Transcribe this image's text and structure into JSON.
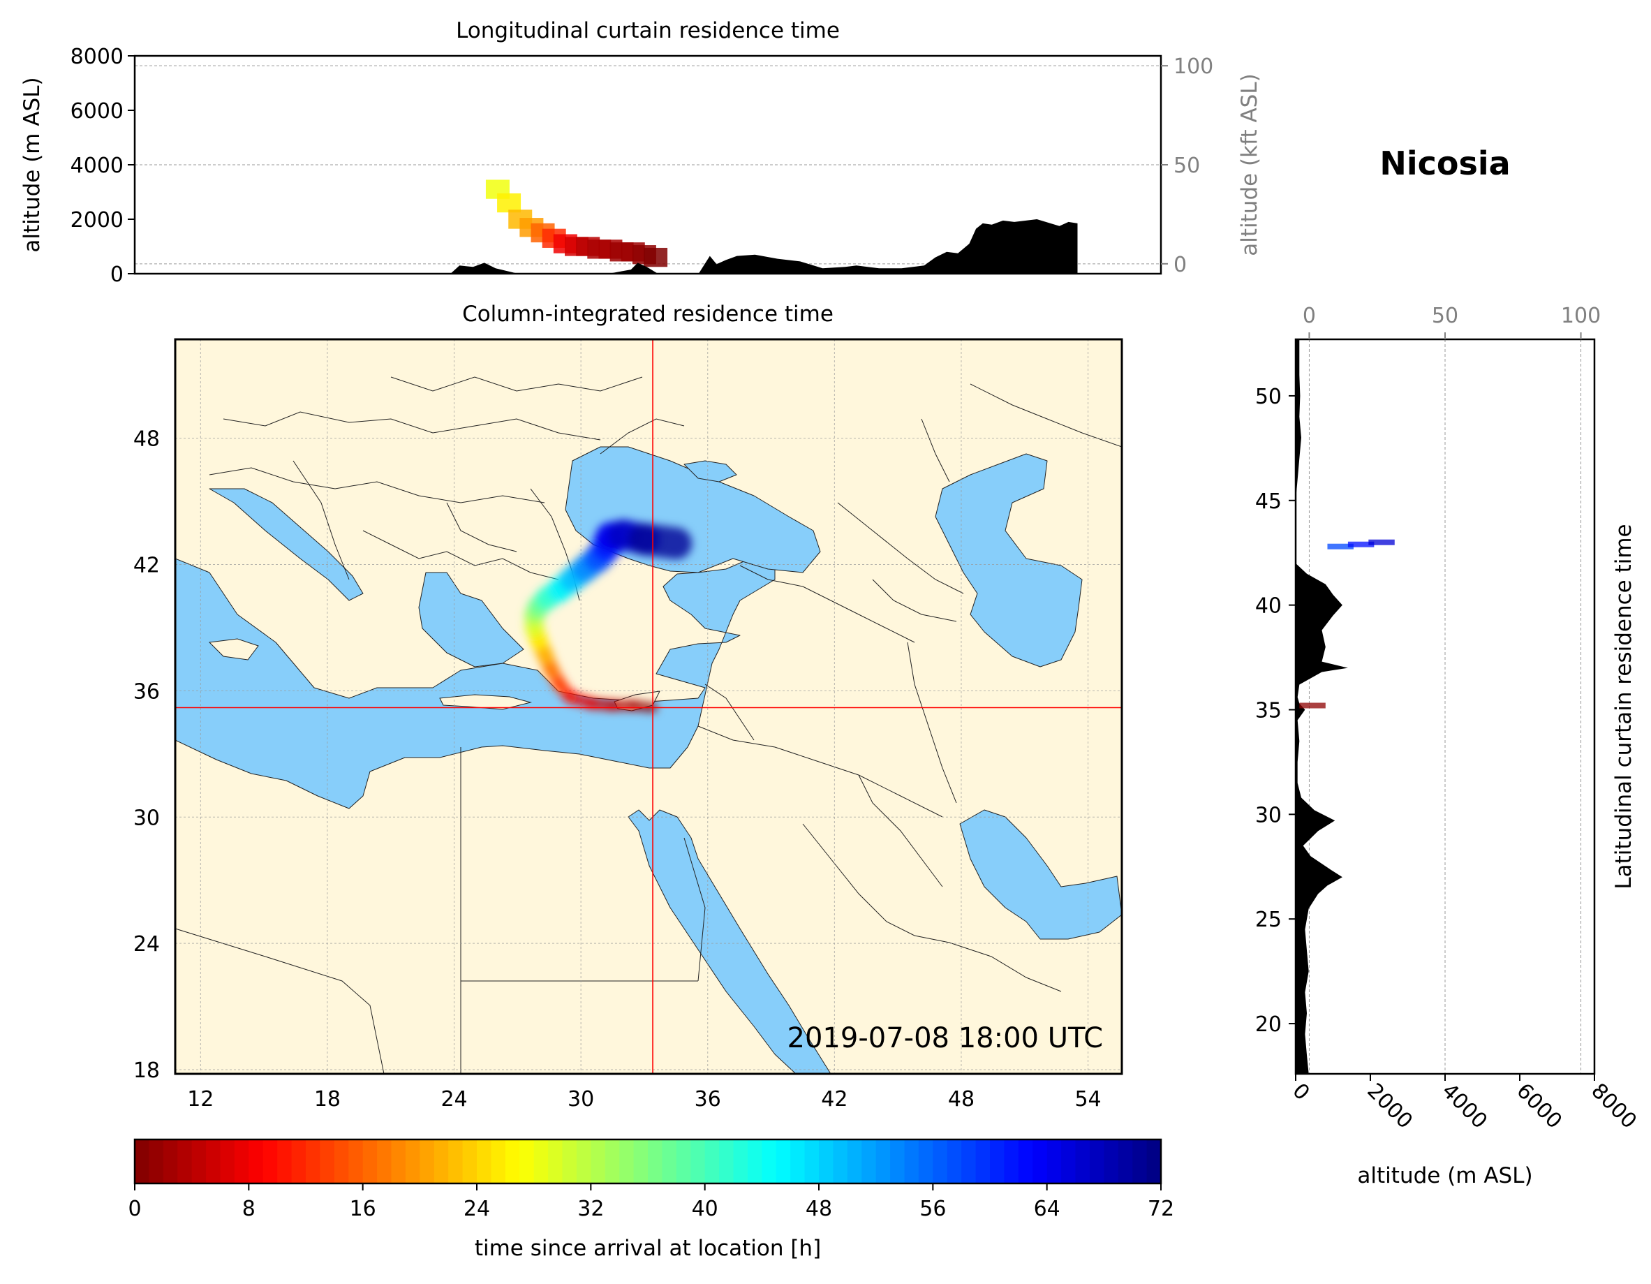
{
  "location": "Nicosia",
  "timestamp": "2019-07-08 18:00 UTC",
  "colors": {
    "sea": "#87cefa",
    "land": "#fff7dc",
    "cross": "#ff0000",
    "terrain": "#000000",
    "grid": "#9a9a9a"
  },
  "chart_data": [
    {
      "id": "longitudinal",
      "type": "area",
      "title": "Longitudinal curtain residence time",
      "ylabel": "altitude (m ASL)",
      "ylabel_right": "altitude (kft ASL)",
      "ylim": [
        0,
        8000
      ],
      "yticks": [
        0,
        2000,
        4000,
        6000,
        8000
      ],
      "ylim_right": [
        -5,
        105
      ],
      "yticks_right": [
        0,
        50,
        100
      ],
      "xlim": [
        10,
        55.5
      ],
      "terrain": {
        "x": [
          10,
          24,
          24.4,
          25,
          25.5,
          26,
          27,
          28,
          29,
          30,
          31,
          32,
          32.3,
          32.7,
          33.2,
          33.7,
          34.3,
          35,
          35.5,
          35.8,
          36.2,
          36.7,
          37.5,
          38.5,
          39.5,
          40.5,
          41.5,
          42,
          43,
          44,
          45,
          45.5,
          46,
          46.5,
          47,
          47.3,
          47.6,
          48,
          48.5,
          49,
          50,
          51,
          51.4,
          51.8,
          51.8,
          55.5
        ],
        "y": [
          0,
          0,
          300,
          250,
          400,
          200,
          0,
          0,
          0,
          0,
          0,
          150,
          400,
          250,
          0,
          0,
          0,
          0,
          650,
          350,
          500,
          650,
          700,
          550,
          450,
          200,
          250,
          300,
          200,
          200,
          300,
          600,
          800,
          750,
          1100,
          1650,
          1850,
          1800,
          1950,
          1900,
          2000,
          1750,
          1900,
          1850,
          0,
          0
        ]
      },
      "residence": {
        "x": [
          26,
          26.5,
          27,
          27.5,
          28,
          28.5,
          29,
          29.5,
          30,
          30.5,
          31,
          31.5,
          32,
          32.5,
          33
        ],
        "y": [
          3100,
          2600,
          2000,
          1700,
          1500,
          1300,
          1100,
          1000,
          1000,
          900,
          900,
          800,
          800,
          700,
          600
        ],
        "t": [
          28,
          26,
          22,
          20,
          16,
          12,
          8,
          6,
          4,
          3,
          3,
          2,
          2,
          1,
          0
        ]
      }
    },
    {
      "id": "column",
      "type": "heatmap",
      "title": "Column-integrated residence time",
      "xlim": [
        10.8,
        55.6
      ],
      "ylim": [
        17.8,
        52.7
      ],
      "xticks": [
        12,
        18,
        24,
        30,
        36,
        42,
        48,
        54
      ],
      "yticks": [
        18,
        24,
        30,
        36,
        42,
        48
      ],
      "location_lon": 33.4,
      "location_lat": 35.2,
      "trajectory": {
        "lon": [
          33.4,
          32.5,
          31.5,
          30.5,
          29.5,
          29,
          28.6,
          28.3,
          28,
          27.8,
          27.8,
          28,
          28.4,
          29,
          29.6,
          30.2,
          30.8,
          31.2,
          31.4,
          32,
          33,
          34.5
        ],
        "lat": [
          35.2,
          35.3,
          35.3,
          35.4,
          35.7,
          36.3,
          37,
          37.7,
          38.4,
          39,
          39.6,
          40,
          40.4,
          40.8,
          41.3,
          41.8,
          42.3,
          42.8,
          43.3,
          43.4,
          43.2,
          43
        ],
        "t": [
          0,
          2,
          4,
          6,
          9,
          12,
          16,
          20,
          24,
          28,
          32,
          36,
          40,
          44,
          48,
          52,
          56,
          60,
          63,
          66,
          69,
          72
        ]
      }
    },
    {
      "id": "latitudinal",
      "type": "area",
      "title": "Latitudinal curtain residence time",
      "xlabel": "altitude (m ASL)",
      "xlim": [
        0,
        8000
      ],
      "xticks": [
        0,
        2000,
        4000,
        6000,
        8000
      ],
      "xticks_top": [
        0,
        50,
        100
      ],
      "xlim_top": [
        -5,
        105
      ],
      "ylim": [
        17.6,
        52.7
      ],
      "yticks": [
        20,
        25,
        30,
        35,
        40,
        45,
        50
      ],
      "terrain": {
        "lat": [
          17.6,
          18.5,
          19.5,
          20.5,
          21.5,
          22.5,
          23.5,
          24.5,
          25.5,
          26.2,
          26.6,
          27,
          27.4,
          28,
          28.5,
          29.2,
          29.7,
          30.2,
          30.8,
          31.5,
          32.5,
          33.5,
          34.5,
          35,
          35.3,
          35.6,
          36.2,
          36.8,
          37,
          37.3,
          38,
          38.8,
          39.5,
          40,
          40.5,
          41,
          41.5,
          42,
          42.5,
          43,
          44,
          45,
          46,
          47,
          48,
          49,
          50,
          51,
          52,
          52.7
        ],
        "alt": [
          350,
          300,
          250,
          300,
          250,
          350,
          300,
          250,
          350,
          600,
          850,
          1250,
          900,
          400,
          200,
          600,
          1050,
          500,
          150,
          50,
          50,
          100,
          50,
          250,
          100,
          50,
          100,
          700,
          1400,
          700,
          800,
          700,
          1000,
          1250,
          1000,
          800,
          300,
          0,
          0,
          0,
          0,
          0,
          50,
          100,
          150,
          100,
          120,
          100,
          100,
          100
        ]
      },
      "residence": {
        "lat": [
          35.2,
          42.8,
          42.9,
          43
        ],
        "alt": [
          450,
          1200,
          1750,
          2300
        ],
        "t": [
          1,
          58,
          62,
          66
        ]
      }
    },
    {
      "id": "colorbar",
      "type": "heatmap",
      "xlabel": "time since arrival at location [h]",
      "range": [
        0,
        72
      ],
      "ticks": [
        0,
        8,
        16,
        24,
        32,
        40,
        48,
        56,
        64,
        72
      ],
      "colormap": "jet_r"
    }
  ]
}
